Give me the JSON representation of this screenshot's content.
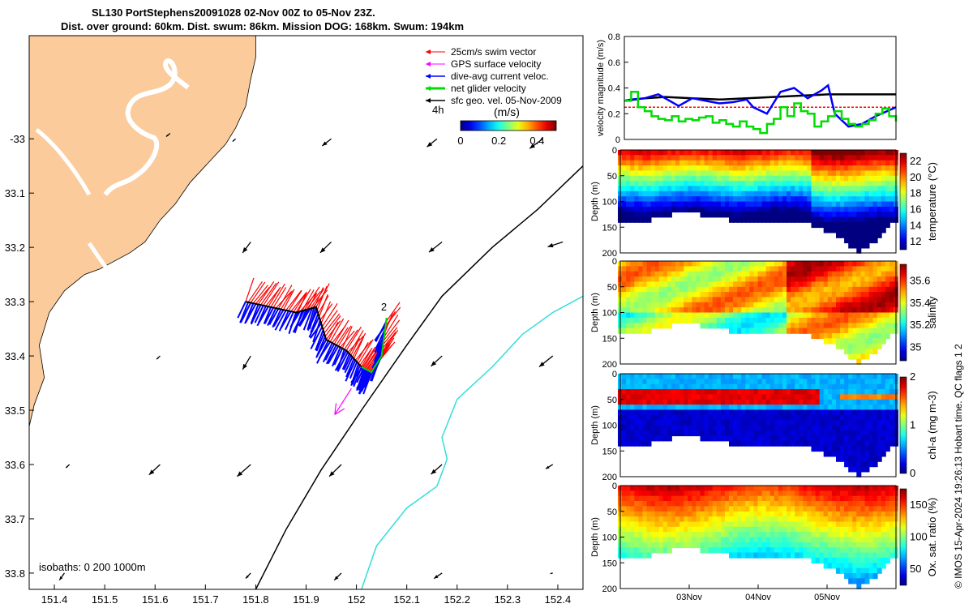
{
  "title_line1": "SL130 PortStephens20091028 02-Nov 00Z to 05-Nov 23Z.",
  "title_line2": "Dist. over ground: 60km. Dist. swum: 86km. Mission DOG: 168km. Swum: 194km",
  "credit": "© IMOS 15-Apr-2024 19:26:13 Hobart time. QC flags 1  2",
  "colors": {
    "land": "#FBCB9B",
    "swim": "#ff0000",
    "gps": "#ff00ff",
    "diveavg": "#0000ff",
    "net": "#00dd00",
    "sfc": "#000000",
    "isobath200": "#000000",
    "isobath1000": "#33dddd"
  },
  "chart_data": [
    {
      "type": "map",
      "name": "track-map",
      "xlim": [
        151.35,
        152.45
      ],
      "ylim": [
        -33.83,
        -32.81
      ],
      "x_ticks": [
        151.4,
        151.5,
        151.6,
        151.7,
        151.8,
        151.9,
        152.0,
        152.1,
        152.2,
        152.3,
        152.4
      ],
      "x_tick_labels": [
        "151.4",
        "151.5",
        "151.6",
        "151.7",
        "151.8",
        "151.9",
        "152",
        "152.1",
        "152.2",
        "152.3",
        "152.4"
      ],
      "y_ticks": [
        -33.0,
        -33.1,
        -33.2,
        -33.3,
        -33.4,
        -33.5,
        -33.6,
        -33.7,
        -33.8
      ],
      "y_tick_labels": [
        "-33",
        "33.1",
        "33.2",
        "33.3",
        "33.4",
        "33.5",
        "33.6",
        "33.7",
        "33.8"
      ],
      "legend": [
        "25cm/s swim vector",
        "GPS surface velocity",
        "dive-avg current veloc.",
        "net glider velocity",
        "sfc geo. vel. 05-Nov-2009"
      ],
      "colorbar_label": "(m/s)",
      "colorbar_ticks": [
        "0",
        "0.2",
        "0.4"
      ],
      "colorbar_range": [
        0,
        0.5
      ],
      "scale_label": "4h",
      "track_day_label": "2",
      "isobath_label": "isobaths: 0   200  1000m",
      "coastline": [
        [
          151.35,
          -33.53
        ],
        [
          151.36,
          -33.49
        ],
        [
          151.38,
          -33.44
        ],
        [
          151.37,
          -33.38
        ],
        [
          151.39,
          -33.32
        ],
        [
          151.42,
          -33.28
        ],
        [
          151.46,
          -33.25
        ],
        [
          151.49,
          -33.24
        ],
        [
          151.55,
          -33.21
        ],
        [
          151.58,
          -33.19
        ],
        [
          151.61,
          -33.15
        ],
        [
          151.64,
          -33.12
        ],
        [
          151.67,
          -33.08
        ],
        [
          151.71,
          -33.04
        ],
        [
          151.74,
          -33.01
        ],
        [
          151.76,
          -32.98
        ],
        [
          151.78,
          -32.94
        ],
        [
          151.79,
          -32.89
        ],
        [
          151.8,
          -32.85
        ],
        [
          151.8,
          -32.81
        ],
        [
          151.35,
          -32.81
        ]
      ],
      "isobath_200": [
        [
          151.8,
          -33.83
        ],
        [
          151.86,
          -33.72
        ],
        [
          151.93,
          -33.61
        ],
        [
          152.01,
          -33.5
        ],
        [
          152.1,
          -33.38
        ],
        [
          152.17,
          -33.29
        ],
        [
          152.27,
          -33.2
        ],
        [
          152.36,
          -33.13
        ],
        [
          152.45,
          -33.05
        ]
      ],
      "isobath_1000": [
        [
          152.01,
          -33.83
        ],
        [
          152.04,
          -33.75
        ],
        [
          152.1,
          -33.68
        ],
        [
          152.16,
          -33.64
        ],
        [
          152.18,
          -33.59
        ],
        [
          152.17,
          -33.55
        ],
        [
          152.2,
          -33.48
        ],
        [
          152.27,
          -33.42
        ],
        [
          152.33,
          -33.36
        ],
        [
          152.39,
          -33.32
        ],
        [
          152.45,
          -33.29
        ]
      ],
      "glider_track": [
        [
          151.78,
          -33.3
        ],
        [
          151.83,
          -33.31
        ],
        [
          151.88,
          -33.32
        ],
        [
          151.92,
          -33.31
        ],
        [
          151.94,
          -33.37
        ],
        [
          151.98,
          -33.39
        ],
        [
          152.01,
          -33.42
        ],
        [
          152.03,
          -33.43
        ],
        [
          152.05,
          -33.4
        ],
        [
          152.06,
          -33.33
        ]
      ],
      "gps_vector": {
        "x0": 151.99,
        "y0": -33.46,
        "u": -0.033,
        "v": -0.048
      },
      "sfc_vectors": [
        {
          "lon": 151.63,
          "lat": -32.99,
          "u": -0.008,
          "v": -0.006
        },
        {
          "lon": 151.76,
          "lat": -33.0,
          "u": -0.006,
          "v": -0.005
        },
        {
          "lon": 151.95,
          "lat": -33.0,
          "u": -0.018,
          "v": -0.013
        },
        {
          "lon": 152.16,
          "lat": -33.0,
          "u": -0.02,
          "v": -0.015
        },
        {
          "lon": 152.37,
          "lat": -33.0,
          "u": -0.026,
          "v": -0.018
        },
        {
          "lon": 151.79,
          "lat": -33.19,
          "u": -0.016,
          "v": -0.02
        },
        {
          "lon": 151.95,
          "lat": -33.19,
          "u": -0.022,
          "v": -0.02
        },
        {
          "lon": 152.17,
          "lat": -33.19,
          "u": -0.026,
          "v": -0.019
        },
        {
          "lon": 152.41,
          "lat": -33.19,
          "u": -0.03,
          "v": -0.009
        },
        {
          "lon": 151.61,
          "lat": -33.4,
          "u": -0.007,
          "v": -0.006
        },
        {
          "lon": 151.79,
          "lat": -33.4,
          "u": -0.016,
          "v": -0.025
        },
        {
          "lon": 152.17,
          "lat": -33.4,
          "u": -0.022,
          "v": -0.019
        },
        {
          "lon": 152.39,
          "lat": -33.4,
          "u": -0.027,
          "v": -0.02
        },
        {
          "lon": 151.43,
          "lat": -33.6,
          "u": -0.007,
          "v": -0.006
        },
        {
          "lon": 151.61,
          "lat": -33.6,
          "u": -0.022,
          "v": -0.019
        },
        {
          "lon": 151.79,
          "lat": -33.6,
          "u": -0.027,
          "v": -0.022
        },
        {
          "lon": 151.97,
          "lat": -33.6,
          "u": -0.024,
          "v": -0.022
        },
        {
          "lon": 152.17,
          "lat": -33.6,
          "u": -0.022,
          "v": -0.018
        },
        {
          "lon": 152.39,
          "lat": -33.6,
          "u": -0.014,
          "v": -0.008
        },
        {
          "lon": 151.42,
          "lat": -33.8,
          "u": -0.01,
          "v": -0.013
        },
        {
          "lon": 151.79,
          "lat": -33.8,
          "u": -0.01,
          "v": -0.01
        },
        {
          "lon": 151.97,
          "lat": -33.8,
          "u": -0.014,
          "v": -0.013
        },
        {
          "lon": 152.17,
          "lat": -33.8,
          "u": -0.016,
          "v": -0.01
        },
        {
          "lon": 152.39,
          "lat": -33.8,
          "u": -0.005,
          "v": -0.001
        }
      ]
    },
    {
      "type": "line",
      "name": "velocity-magnitude",
      "ylabel": "velocity magnitude (m/s)",
      "xlim": [
        2.0,
        6.0
      ],
      "ylim": [
        0,
        0.8
      ],
      "y_ticks": [
        0,
        0.2,
        0.4,
        0.6,
        0.8
      ],
      "y_tick_labels": [
        "0",
        "0.2",
        "0.4",
        "0.6",
        "0.8"
      ],
      "series": [
        {
          "name": "25cm/s swim vector",
          "color": "#ff0000",
          "x": [
            2.0,
            6.0
          ],
          "y": [
            0.25,
            0.25
          ]
        },
        {
          "name": "sfc geo. vel. 05-Nov-2009",
          "color": "#000000",
          "x": [
            2.0,
            2.3,
            2.6,
            3.0,
            3.4,
            3.8,
            4.2,
            4.6,
            5.0,
            5.4,
            6.0
          ],
          "y": [
            0.3,
            0.32,
            0.33,
            0.32,
            0.31,
            0.32,
            0.33,
            0.34,
            0.35,
            0.35,
            0.35
          ]
        },
        {
          "name": "dive-avg current veloc.",
          "color": "#0000ff",
          "x": [
            2.0,
            2.1,
            2.3,
            2.5,
            2.8,
            3.0,
            3.2,
            3.4,
            3.6,
            3.8,
            3.9,
            4.1,
            4.3,
            4.5,
            4.7,
            4.9,
            5.0,
            5.1,
            5.3,
            5.5,
            5.7,
            6.0
          ],
          "y": [
            0.3,
            0.31,
            0.32,
            0.35,
            0.26,
            0.32,
            0.3,
            0.28,
            0.29,
            0.31,
            0.25,
            0.2,
            0.37,
            0.4,
            0.32,
            0.38,
            0.42,
            0.2,
            0.1,
            0.12,
            0.18,
            0.25
          ]
        },
        {
          "name": "net glider velocity",
          "color": "#00dd00",
          "x": [
            2.0,
            2.1,
            2.2,
            2.3,
            2.4,
            2.5,
            2.6,
            2.7,
            2.8,
            2.9,
            3.0,
            3.1,
            3.2,
            3.3,
            3.4,
            3.5,
            3.6,
            3.7,
            3.8,
            3.9,
            4.0,
            4.1,
            4.2,
            4.3,
            4.4,
            4.5,
            4.6,
            4.7,
            4.8,
            4.9,
            5.0,
            5.1,
            5.2,
            5.3,
            5.4,
            5.5,
            5.6,
            5.7,
            5.8,
            5.9,
            6.0
          ],
          "y": [
            0.3,
            0.37,
            0.25,
            0.22,
            0.18,
            0.16,
            0.15,
            0.18,
            0.14,
            0.16,
            0.15,
            0.17,
            0.18,
            0.13,
            0.15,
            0.12,
            0.1,
            0.14,
            0.1,
            0.08,
            0.05,
            0.12,
            0.16,
            0.25,
            0.18,
            0.28,
            0.22,
            0.2,
            0.1,
            0.14,
            0.18,
            0.22,
            0.16,
            0.12,
            0.1,
            0.12,
            0.15,
            0.2,
            0.24,
            0.18,
            0.14
          ]
        }
      ]
    },
    {
      "type": "heatmap",
      "name": "temperature-section",
      "ylabel": "Depth (m)",
      "colorbar_label": "temperature (°C)",
      "ylim": [
        200,
        0
      ],
      "y_ticks": [
        0,
        50,
        100,
        150,
        200
      ],
      "colorbar_ticks": [
        "12",
        "14",
        "16",
        "18",
        "20",
        "22"
      ],
      "crange": [
        11,
        23
      ]
    },
    {
      "type": "heatmap",
      "name": "salinity-section",
      "ylabel": "Depth (m)",
      "colorbar_label": "salinity",
      "ylim": [
        200,
        0
      ],
      "y_ticks": [
        0,
        50,
        100,
        150,
        200
      ],
      "colorbar_ticks": [
        "35",
        "35.2",
        "35.4",
        "35.6"
      ],
      "crange": [
        34.88,
        35.75
      ]
    },
    {
      "type": "heatmap",
      "name": "chla-section",
      "ylabel": "Depth (m)",
      "colorbar_label": "chl-a (mg m-3)",
      "ylim": [
        200,
        0
      ],
      "y_ticks": [
        0,
        50,
        100,
        150,
        200
      ],
      "colorbar_ticks": [
        "0",
        "1",
        "2"
      ],
      "crange": [
        0,
        2
      ]
    },
    {
      "type": "heatmap",
      "name": "oxygen-section",
      "ylabel": "Depth (m)",
      "colorbar_label": "Ox. sat. ratio (%)",
      "ylim": [
        200,
        0
      ],
      "y_ticks": [
        0,
        50,
        100,
        150,
        200
      ],
      "colorbar_ticks": [
        "50",
        "100",
        "150"
      ],
      "crange": [
        25,
        175
      ],
      "x_tick_labels": [
        "03Nov",
        "04Nov",
        "05Nov"
      ],
      "x_ticks": [
        3,
        4,
        5
      ],
      "xlim": [
        2.0,
        6.0
      ]
    }
  ]
}
